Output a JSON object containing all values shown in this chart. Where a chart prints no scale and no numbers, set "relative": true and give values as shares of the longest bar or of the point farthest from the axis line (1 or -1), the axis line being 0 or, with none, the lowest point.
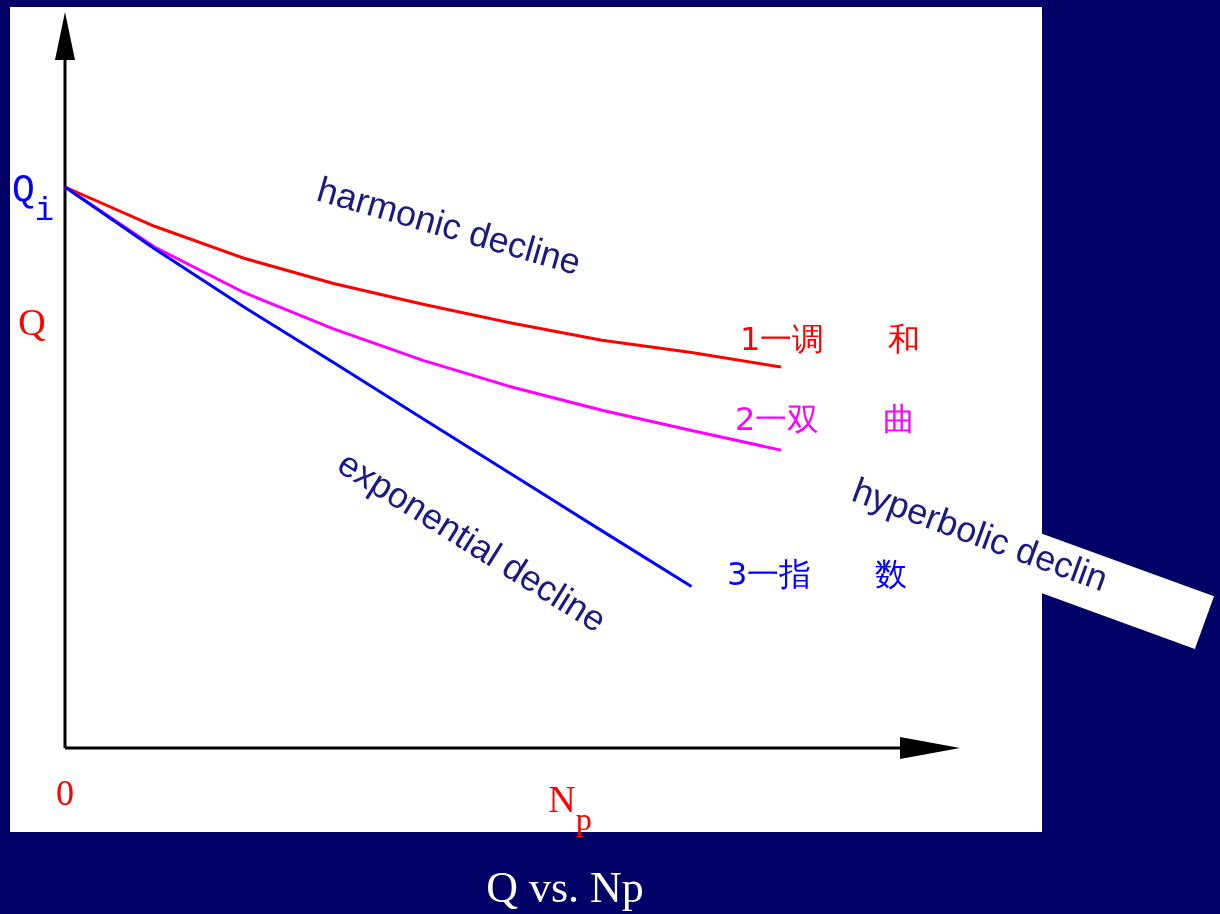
{
  "chart_data": {
    "type": "line",
    "title": "Q  vs. Np",
    "xlabel": "N$_{p}$",
    "ylabel": "Q",
    "relative": true,
    "categories": [
      null,
      null,
      null,
      null,
      null,
      null,
      null,
      null,
      null
    ],
    "series": [
      {
        "name": "1一调　　和",
        "color": "#ff0000",
        "values": [
          1,
          0.93,
          0.873,
          0.828,
          0.791,
          0.757,
          0.727,
          0.705,
          0.679
        ]
      },
      {
        "name": "2一双　　曲",
        "color": "#ff00ff",
        "values": [
          1,
          0.893,
          0.812,
          0.747,
          0.691,
          0.643,
          0.602,
          0.566,
          0.531
        ]
      },
      {
        "name": "3一指　　数",
        "color": "#0000ff",
        "values": [
          1,
          0.89,
          0.786,
          0.687,
          0.587,
          0.487,
          0.387,
          0.288,
          null
        ]
      }
    ],
    "annotations": [
      "Q$_{i}$",
      "0",
      "harmonic decline",
      "hyperbolic declin",
      "exponential decline"
    ]
  }
}
